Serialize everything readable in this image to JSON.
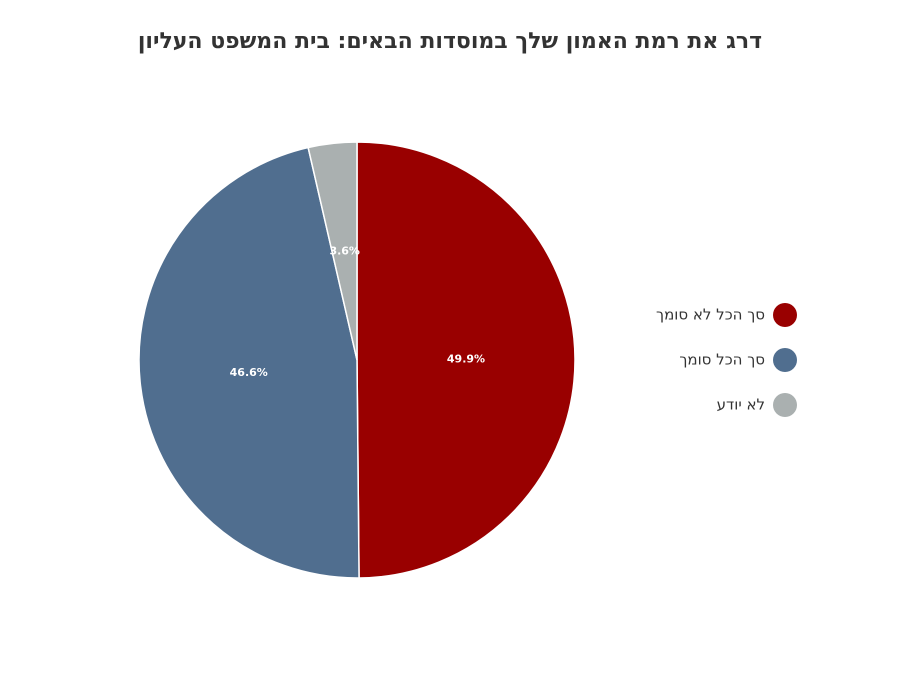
{
  "chart_data": {
    "type": "pie",
    "title": "דרג את רמת האמון שלך במוסדות הבאים: בית המשפט העליון",
    "categories": [
      "סך הכל לא סומך",
      "סך הכל סומך",
      "לא יודע"
    ],
    "values": [
      49.9,
      46.6,
      3.6
    ],
    "value_labels": [
      "49.9%",
      "46.6%",
      "3.6%"
    ],
    "colors": [
      "#990000",
      "#506e8f",
      "#aab0b0"
    ],
    "legend": "right"
  }
}
